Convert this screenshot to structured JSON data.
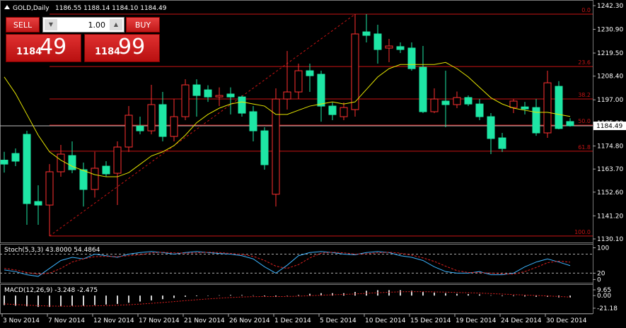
{
  "header": {
    "symbol": "GOLD,Daily",
    "ohlc": "1186.55 1188.14 1184.10 1184.49"
  },
  "trade_panel": {
    "sell": "SELL",
    "buy": "BUY",
    "lots": "1.00",
    "bid_big": "1184",
    "bid_small": "49",
    "ask_big": "1184",
    "ask_small": "99"
  },
  "chart_data": [
    {
      "type": "candlestick",
      "categories": [
        "3 Nov 2014",
        null,
        null,
        null,
        "7 Nov 2014",
        null,
        null,
        null,
        "12 Nov 2014",
        null,
        null,
        null,
        "17 Nov 2014",
        null,
        null,
        null,
        "21 Nov 2014",
        null,
        null,
        null,
        "26 Nov 2014",
        null,
        null,
        null,
        "1 Dec 2014",
        null,
        null,
        null,
        "5 Dec 2014",
        null,
        null,
        null,
        "10 Dec 2014",
        null,
        null,
        null,
        "15 Dec 2014",
        null,
        null,
        null,
        "19 Dec 2014",
        null,
        null,
        null,
        "24 Dec 2014",
        null,
        null,
        null,
        "30 Dec 2014",
        null,
        null
      ],
      "open": [
        1168.0,
        1171.2,
        1180.4,
        1148.1,
        1146.4,
        1162.4,
        1170.2,
        1163.4,
        1153.9,
        1165.1,
        1161.7,
        1174.3,
        1184.5,
        1182.1,
        1194.7,
        1179.4,
        1188.9,
        1204.2,
        1201.8,
        1198.4,
        1199.8,
        1198.4,
        1191.3,
        1182.1,
        1151.6,
        1197.4,
        1200.8,
        1211.0,
        1209.3,
        1194.0,
        1188.9,
        1192.3,
        1229.7,
        1228.7,
        1221.9,
        1222.6,
        1221.9,
        1212.7,
        1191.3,
        1196.4,
        1194.7,
        1198.1,
        1195.0,
        1188.9,
        1178.7,
        1193.3,
        1193.6,
        1193.3,
        1181.1,
        1203.5,
        1186.55
      ],
      "high": [
        1172.0,
        1173.6,
        1182.1,
        1155.9,
        1166.1,
        1175.3,
        1177.0,
        1166.8,
        1172.0,
        1167.5,
        1177.0,
        1194.0,
        1188.9,
        1204.2,
        1200.8,
        1197.4,
        1206.9,
        1206.9,
        1204.0,
        1203.0,
        1203.0,
        1199.1,
        1194.0,
        1183.8,
        1202.5,
        1220.5,
        1214.4,
        1214.4,
        1211.0,
        1195.7,
        1195.7,
        1238.2,
        1238.2,
        1233.1,
        1226.3,
        1224.6,
        1224.6,
        1222.9,
        1202.5,
        1211.0,
        1201.0,
        1199.1,
        1197.4,
        1190.6,
        1181.1,
        1197.4,
        1196.0,
        1197.4,
        1211.0,
        1206.0,
        1188.14
      ],
      "low": [
        1162.0,
        1165.1,
        1136.9,
        1136.9,
        1131.5,
        1160.0,
        1161.7,
        1145.7,
        1150.0,
        1160.0,
        1146.4,
        1171.9,
        1180.4,
        1180.4,
        1177.0,
        1177.0,
        1187.2,
        1188.9,
        1196.0,
        1194.0,
        1190.0,
        1188.9,
        1177.0,
        1163.4,
        1145.7,
        1192.3,
        1197.4,
        1200.8,
        1186.5,
        1187.2,
        1187.2,
        1188.9,
        1224.6,
        1214.4,
        1215.1,
        1219.5,
        1211.0,
        1190.6,
        1190.6,
        1183.8,
        1193.0,
        1194.0,
        1187.2,
        1170.9,
        1171.9,
        1190.6,
        1190.0,
        1179.7,
        1178.7,
        1182.8,
        1184.1
      ],
      "close": [
        1166.1,
        1167.5,
        1147.1,
        1146.4,
        1162.4,
        1170.9,
        1163.4,
        1153.9,
        1164.1,
        1161.4,
        1174.3,
        1189.6,
        1182.1,
        1194.7,
        1179.4,
        1188.9,
        1204.2,
        1199.1,
        1198.4,
        1199.1,
        1198.4,
        1190.6,
        1182.1,
        1165.8,
        1197.4,
        1200.8,
        1211.0,
        1208.6,
        1194.0,
        1189.9,
        1193.3,
        1228.7,
        1228.0,
        1221.2,
        1222.9,
        1221.2,
        1212.0,
        1191.3,
        1197.4,
        1194.7,
        1198.1,
        1195.0,
        1188.9,
        1178.4,
        1173.6,
        1196.4,
        1192.6,
        1181.1,
        1205.2,
        1183.2,
        1184.49
      ],
      "up_color": "#ff3030",
      "down_color": "#1ee6a5",
      "overlay": {
        "color": "#e6e600",
        "values": [
          1208,
          1200,
          1190,
          1180,
          1172,
          1168,
          1165,
          1163,
          1161,
          1160,
          1160,
          1162,
          1166,
          1170,
          1172,
          1175,
          1180,
          1186,
          1190,
          1193,
          1195,
          1196,
          1195,
          1194,
          1190,
          1190,
          1192,
          1194,
          1195,
          1196,
          1195,
          1196,
          1202,
          1208,
          1212,
          1214,
          1214,
          1214,
          1214,
          1215,
          1212,
          1208,
          1203,
          1198,
          1195,
          1193,
          1192,
          1191,
          1191,
          1190,
          1189
        ]
      },
      "current_price": 1184.49,
      "fib_color": "#c81414",
      "fib_levels": [
        {
          "label": "0.0",
          "price": 1238.2
        },
        {
          "label": "23.6",
          "price": 1213.0
        },
        {
          "label": "38.2",
          "price": 1197.4
        },
        {
          "label": "50.0",
          "price": 1184.85
        },
        {
          "label": "61.8",
          "price": 1172.3
        },
        {
          "label": "100.0",
          "price": 1131.5
        }
      ],
      "ylim": [
        1128.4,
        1245.02
      ],
      "yticks": [
        {
          "value": 1242.3,
          "label": "1242.30"
        },
        {
          "value": 1230.9,
          "label": "1230.90"
        },
        {
          "value": 1219.5,
          "label": "1219.50"
        },
        {
          "value": 1208.4,
          "label": "1208.40"
        },
        {
          "value": 1197.0,
          "label": "1197.00"
        },
        {
          "value": 1185.9,
          "label": "1185.90"
        },
        {
          "value": 1174.8,
          "label": "1174.80"
        },
        {
          "value": 1163.7,
          "label": "1163.70"
        },
        {
          "value": 1152.6,
          "label": "1152.60"
        },
        {
          "value": 1141.2,
          "label": "1141.20"
        },
        {
          "value": 1130.1,
          "label": "1130.10"
        }
      ]
    },
    {
      "type": "line",
      "title": "Stoch(5,3,3) 43.8000 54.4864",
      "series": [
        {
          "color": "#3cb4ff",
          "values": [
            30,
            25,
            15,
            10,
            35,
            60,
            70,
            65,
            80,
            75,
            70,
            80,
            85,
            88,
            85,
            80,
            85,
            88,
            85,
            82,
            80,
            75,
            65,
            40,
            20,
            45,
            75,
            85,
            88,
            85,
            80,
            78,
            85,
            88,
            85,
            75,
            70,
            60,
            40,
            25,
            20,
            20,
            25,
            15,
            15,
            20,
            40,
            55,
            65,
            55,
            43.8
          ]
        },
        {
          "color": "#e02020",
          "dashed": true,
          "values": [
            35,
            30,
            22,
            17,
            20,
            35,
            55,
            65,
            72,
            73,
            72,
            75,
            78,
            84,
            86,
            84,
            83,
            84,
            86,
            85,
            82,
            79,
            73,
            60,
            42,
            35,
            47,
            68,
            83,
            86,
            84,
            80,
            81,
            84,
            86,
            83,
            77,
            68,
            57,
            42,
            28,
            22,
            22,
            20,
            18,
            17,
            25,
            38,
            53,
            58,
            54.4864
          ]
        }
      ],
      "levels": [
        80,
        20
      ],
      "ylim": [
        -8,
        110
      ],
      "yticks": [
        100,
        20,
        0
      ]
    },
    {
      "type": "macd",
      "title": "MACD(12,26,9) -3.248 -2.475",
      "values": [
        -16,
        -17,
        -18,
        -19,
        -19,
        -18,
        -17,
        -17,
        -16,
        -15,
        -14,
        -12,
        -10,
        -8,
        -6,
        -4,
        -2,
        -1,
        0,
        0.5,
        1,
        1,
        0.5,
        -1,
        -2,
        -0.5,
        1,
        3,
        4,
        4,
        4,
        6,
        8,
        9,
        9,
        9,
        8,
        6,
        5,
        4,
        3,
        2.5,
        2,
        0.5,
        -1,
        -1,
        -1.5,
        -2,
        -2,
        -3,
        -3.248
      ],
      "color": "#d8d8d8",
      "signal": {
        "color": "#e02020",
        "values": [
          -14,
          -15,
          -16,
          -17,
          -17.5,
          -17.8,
          -17.7,
          -17.5,
          -17.2,
          -16.8,
          -16.2,
          -15.4,
          -14.3,
          -13,
          -11.6,
          -10.1,
          -8.5,
          -7,
          -5.6,
          -4.4,
          -3.3,
          -2.4,
          -1.8,
          -1.6,
          -1.7,
          -1.5,
          -1,
          -0.2,
          0.6,
          1.3,
          1.9,
          2.7,
          3.8,
          4.8,
          5.6,
          6.3,
          6.6,
          6.5,
          6.2,
          5.8,
          5.2,
          4.7,
          4.2,
          3.4,
          2.5,
          1.7,
          0.9,
          0.2,
          -0.6,
          -1.5,
          -2.475
        ]
      },
      "ylim": [
        -28.3,
        17.95
      ],
      "yticks": [
        9.65,
        {
          "value": 0,
          "label": "0.00"
        },
        -21.18
      ]
    }
  ]
}
